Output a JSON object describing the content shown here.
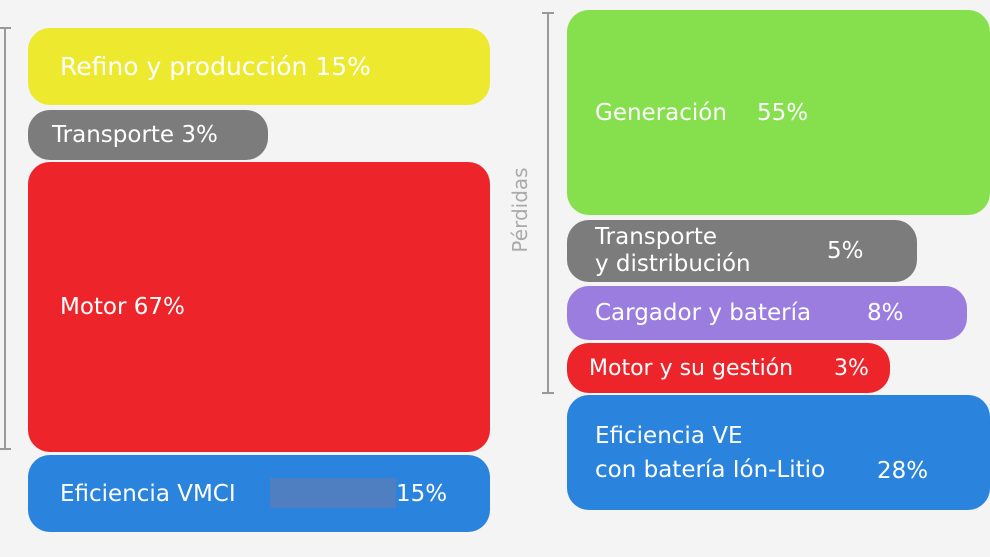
{
  "left": {
    "refino": {
      "label": "Refino y producción 15%",
      "color": "#ece92e"
    },
    "transporte": {
      "label": "Transporte 3%",
      "color": "#7c7c7c"
    },
    "motor": {
      "label": "Motor 67%",
      "color": "#ee242b"
    },
    "eficiencia": {
      "label": "Eficiencia VMCI",
      "value": "15%",
      "color": "#2a83dc"
    }
  },
  "right": {
    "axis_label": "Pérdidas",
    "generacion": {
      "label": "Generación",
      "value": "55%",
      "color": "#86e04e"
    },
    "transporte": {
      "label_line1": "Transporte",
      "label_line2": "y distribución",
      "value": "5%",
      "color": "#7c7c7c"
    },
    "cargador": {
      "label": "Cargador y batería",
      "value": "8%",
      "color": "#9b7de0"
    },
    "motor": {
      "label": "Motor y su gestión",
      "value": "3%",
      "color": "#ee242b"
    },
    "eficiencia": {
      "label_line1": "Eficiencia VE",
      "label_line2": "con batería Ión-Litio",
      "value": "28%",
      "color": "#2a83dc"
    }
  }
}
